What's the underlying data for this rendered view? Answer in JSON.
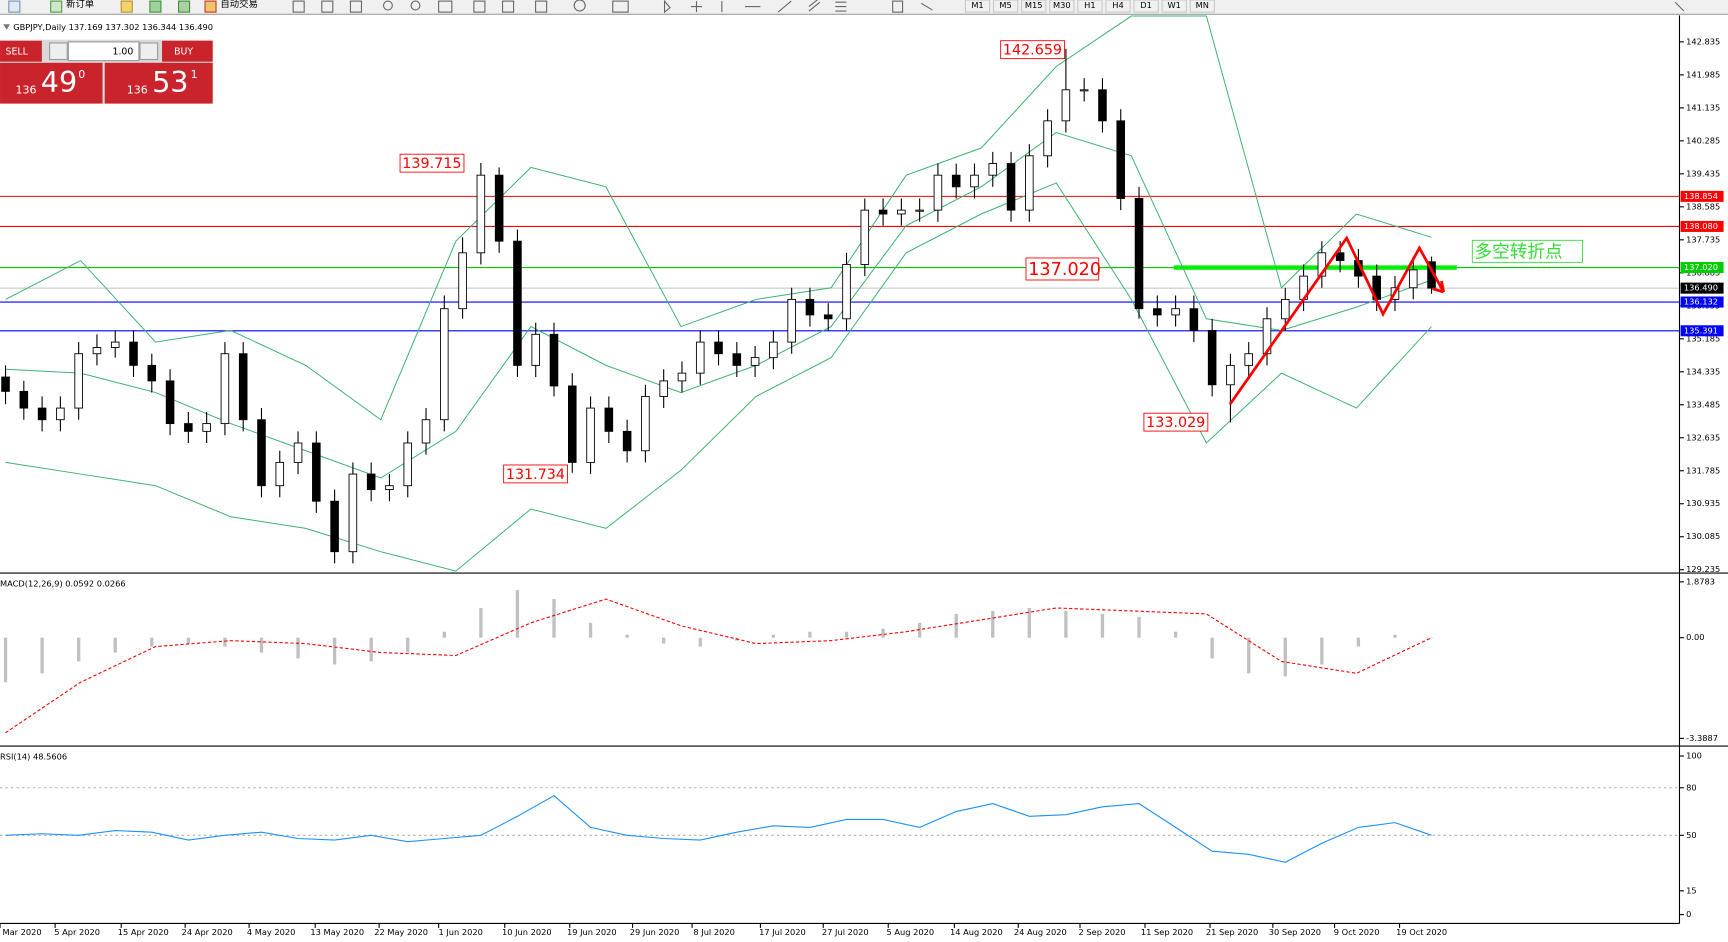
{
  "toolbar": {
    "new_order": "新订单",
    "auto_trading": "自动交易",
    "timeframes": [
      "M1",
      "M5",
      "M15",
      "M30",
      "H1",
      "H4",
      "D1",
      "W1",
      "MN"
    ]
  },
  "symbol_header": "GBPJPY,Daily 137.169 137.302 136.344 136.490",
  "trade_panel": {
    "sell": "SELL",
    "buy": "BUY",
    "lots": "1.00",
    "sell_price": {
      "big": "136",
      "pips": "49",
      "frac": "0"
    },
    "buy_price": {
      "big": "136",
      "pips": "53",
      "frac": "1"
    }
  },
  "chart_data": [
    {
      "type": "candlestick",
      "ylim": [
        129.178,
        143.516
      ],
      "yticks": [
        142.835,
        141.985,
        141.135,
        140.285,
        139.435,
        138.585,
        137.735,
        136.885,
        136.035,
        135.185,
        134.335,
        133.485,
        132.635,
        131.785,
        130.935,
        130.085,
        129.235
      ],
      "x_labels": [
        "Mar 2020",
        "5 Apr 2020",
        "15 Apr 2020",
        "24 Apr 2020",
        "4 May 2020",
        "13 May 2020",
        "22 May 2020",
        "1 Jun 2020",
        "10 Jun 2020",
        "19 Jun 2020",
        "29 Jun 2020",
        "8 Jul 2020",
        "17 Jul 2020",
        "27 Jul 2020",
        "5 Aug 2020",
        "14 Aug 2020",
        "24 Aug 2020",
        "2 Sep 2020",
        "11 Sep 2020",
        "21 Sep 2020",
        "30 Sep 2020",
        "9 Oct 2020",
        "19 Oct 2020"
      ],
      "open": [
        134.2,
        133.83,
        133.4,
        133.1,
        133.4,
        134.8,
        134.96,
        135.1,
        134.5,
        134.1,
        133.0,
        132.8,
        133.0,
        134.8,
        133.1,
        131.4,
        132.0,
        132.5,
        131.0,
        129.7,
        131.7,
        131.3,
        131.4,
        132.5,
        133.1,
        135.96,
        137.4,
        139.4,
        137.7,
        134.5,
        135.3,
        133.97,
        132.0,
        133.4,
        132.8,
        132.3,
        133.7,
        134.1,
        134.3,
        135.1,
        134.8,
        134.5,
        134.7,
        135.1,
        136.2,
        135.8,
        135.7,
        137.1,
        138.5,
        138.4,
        138.5,
        138.5,
        139.4,
        139.1,
        139.4,
        139.7,
        138.5,
        139.9,
        140.8,
        141.6,
        141.6,
        140.8,
        138.8,
        135.96,
        135.8,
        135.96,
        135.4,
        134.0,
        134.5,
        134.8,
        135.7,
        136.2,
        136.8,
        137.4,
        137.2,
        136.8,
        136.2,
        136.5,
        137.169
      ],
      "high": [
        134.5,
        134.1,
        133.7,
        133.7,
        135.1,
        135.3,
        135.4,
        135.4,
        134.8,
        134.4,
        133.3,
        133.3,
        135.1,
        135.1,
        133.4,
        132.3,
        132.8,
        132.8,
        131.3,
        132.0,
        132.0,
        131.7,
        132.8,
        133.4,
        136.3,
        137.8,
        139.715,
        139.6,
        138.0,
        135.6,
        135.6,
        134.3,
        133.7,
        133.7,
        133.1,
        134.0,
        134.4,
        134.6,
        135.4,
        135.4,
        135.1,
        135.0,
        135.4,
        136.5,
        136.5,
        136.1,
        137.4,
        138.8,
        138.8,
        138.8,
        138.8,
        139.7,
        139.7,
        139.7,
        140.0,
        140.0,
        140.2,
        141.1,
        142.659,
        141.9,
        141.9,
        141.1,
        139.1,
        136.3,
        136.3,
        136.3,
        135.7,
        134.8,
        135.1,
        136.0,
        136.5,
        137.1,
        137.7,
        137.7,
        137.5,
        137.1,
        136.8,
        137.3,
        137.302
      ],
      "low": [
        133.5,
        133.1,
        132.8,
        132.8,
        133.1,
        134.5,
        134.7,
        134.2,
        133.8,
        132.7,
        132.5,
        132.5,
        132.7,
        132.8,
        131.1,
        131.1,
        131.7,
        130.7,
        129.4,
        129.4,
        131.0,
        131.0,
        131.1,
        132.2,
        132.8,
        135.7,
        137.1,
        137.4,
        134.2,
        134.2,
        133.7,
        131.734,
        131.7,
        132.5,
        132.0,
        132.0,
        133.4,
        133.8,
        134.0,
        134.5,
        134.2,
        134.2,
        134.4,
        134.8,
        135.5,
        135.4,
        135.4,
        136.8,
        138.1,
        138.1,
        138.2,
        138.2,
        138.8,
        138.8,
        139.1,
        138.2,
        138.2,
        139.6,
        140.5,
        141.3,
        140.5,
        138.5,
        135.7,
        135.5,
        135.5,
        135.1,
        133.7,
        133.029,
        134.2,
        134.5,
        135.4,
        135.9,
        136.5,
        136.9,
        136.5,
        135.9,
        135.9,
        136.2,
        136.344
      ],
      "close": [
        133.83,
        133.4,
        133.1,
        133.4,
        134.8,
        134.96,
        135.1,
        134.5,
        134.1,
        133.0,
        132.8,
        133.0,
        134.8,
        133.1,
        131.4,
        132.0,
        132.5,
        131.0,
        129.7,
        131.7,
        131.3,
        131.4,
        132.5,
        133.1,
        135.96,
        137.4,
        139.4,
        137.7,
        134.5,
        135.3,
        133.97,
        132.0,
        133.4,
        132.8,
        132.3,
        133.7,
        134.1,
        134.3,
        135.1,
        134.8,
        134.5,
        134.7,
        135.1,
        136.2,
        135.8,
        135.7,
        137.1,
        138.5,
        138.4,
        138.5,
        138.5,
        139.4,
        139.1,
        139.4,
        139.7,
        138.5,
        139.9,
        140.8,
        141.6,
        141.6,
        140.8,
        138.8,
        135.96,
        135.8,
        135.96,
        135.4,
        134.0,
        134.5,
        134.8,
        135.7,
        136.2,
        136.8,
        137.4,
        137.2,
        136.8,
        136.2,
        136.5,
        136.96,
        136.49
      ],
      "bands": {
        "color": "#3cb371",
        "upper": [
          136.2,
          137.2,
          135.1,
          135.4,
          134.5,
          133.1,
          137.7,
          139.6,
          139.1,
          135.5,
          136.2,
          136.5,
          139.4,
          140.1,
          142.2,
          143.5,
          143.5,
          136.5,
          138.4,
          137.8
        ],
        "middle": [
          134.4,
          134.3,
          133.8,
          133.0,
          132.3,
          131.6,
          132.8,
          135.5,
          134.5,
          133.8,
          134.5,
          135.5,
          138.1,
          139.1,
          140.5,
          139.9,
          135.7,
          135.4,
          136.0,
          136.7
        ],
        "lower": [
          132.0,
          131.7,
          131.4,
          130.6,
          130.3,
          129.7,
          129.2,
          130.8,
          130.3,
          131.8,
          133.7,
          134.7,
          137.4,
          138.4,
          139.2,
          136.2,
          132.5,
          134.3,
          133.4,
          135.5
        ]
      },
      "hlines": [
        {
          "value": 138.854,
          "color": "#ff0000"
        },
        {
          "value": 138.08,
          "label": "138.080",
          "color": "#ff0000"
        },
        {
          "value": 137.02,
          "label": "137.020",
          "color": "#00cc00"
        },
        {
          "value": 136.49,
          "label": "136.490",
          "color": "#000000"
        },
        {
          "value": 136.132,
          "color": "#0000ff"
        },
        {
          "value": 135.391,
          "color": "#0000ff"
        }
      ],
      "annotations": [
        "142.659",
        "139.715",
        "131.734",
        "133.029",
        "137.020",
        "多空转折点"
      ]
    },
    {
      "type": "macd",
      "label": "MACD(12,26,9) 0.0592 0.0266",
      "ylim": [
        -3.611,
        2.138
      ],
      "yticks": [
        1.8783,
        {
          "value": 0,
          "label": "0.00"
        },
        -3.3887
      ],
      "histogram": [
        -1.5,
        -1.2,
        -0.8,
        -0.5,
        -0.3,
        -0.2,
        -0.3,
        -0.5,
        -0.7,
        -0.9,
        -0.8,
        -0.5,
        0.2,
        1.0,
        1.6,
        1.3,
        0.5,
        0.1,
        -0.2,
        -0.3,
        -0.1,
        0.1,
        0.2,
        0.2,
        0.3,
        0.5,
        0.8,
        0.9,
        1.0,
        0.9,
        0.8,
        0.7,
        0.2,
        -0.7,
        -1.2,
        -1.3,
        -0.9,
        -0.3,
        0.1,
        0.0
      ],
      "signal": [
        -3.2,
        -1.5,
        -0.3,
        -0.1,
        -0.2,
        -0.5,
        -0.6,
        0.5,
        1.3,
        0.4,
        -0.2,
        -0.1,
        0.2,
        0.6,
        1.0,
        0.9,
        0.8,
        -0.8,
        -1.2,
        0.0
      ]
    },
    {
      "type": "line",
      "label": "RSI(14) 48.5606",
      "ylim": [
        -5.6,
        105.6
      ],
      "yticks": [
        100,
        80,
        50,
        15,
        0
      ],
      "levels": [
        80,
        50
      ],
      "color": "#1e90ff",
      "values": [
        50,
        51,
        50,
        53,
        52,
        47,
        50,
        52,
        48,
        47,
        50,
        46,
        48,
        50,
        62,
        75,
        55,
        50,
        48,
        47,
        52,
        56,
        55,
        60,
        60,
        55,
        65,
        70,
        62,
        63,
        68,
        70,
        55,
        40,
        38,
        33,
        45,
        55,
        58,
        50
      ]
    }
  ]
}
